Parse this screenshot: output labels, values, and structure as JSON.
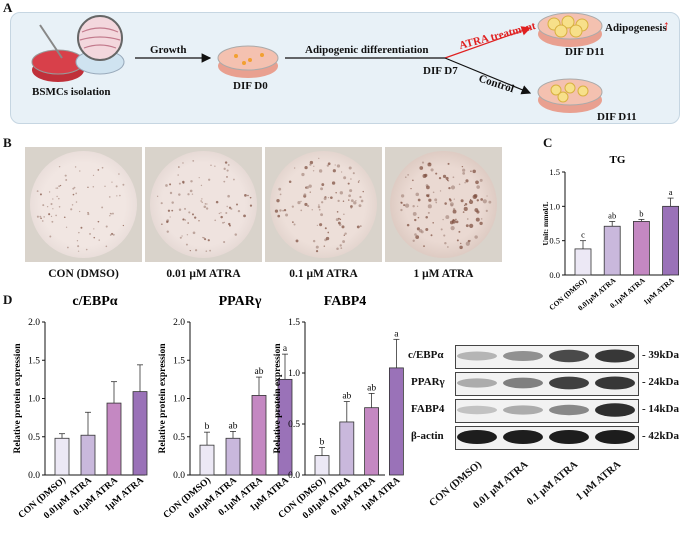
{
  "panels": {
    "a": "A",
    "b": "B",
    "c": "C",
    "d": "D"
  },
  "schema": {
    "isolation": "BSMCs isolation",
    "growth": "Growth",
    "dif_d0": "DIF D0",
    "adipogenic": "Adipogenic differentiation",
    "dif_d7": "DIF D7",
    "atra_treatment": "ATRA treatment",
    "control": "Control",
    "adipogenesis": "Adipogenesis",
    "up_arrow": "↑",
    "dif_d11_top": "DIF D11",
    "dif_d11_bottom": "DIF D11"
  },
  "micrographs": [
    "CON (DMSO)",
    "0.01 μM ATRA",
    "0.1 μM ATRA",
    "1 μM ATRA"
  ],
  "western": {
    "proteins": [
      "c/EBPα",
      "PPARγ",
      "FABP4",
      "β-actin"
    ],
    "sizes": [
      "- 39kDa",
      "- 24kDa",
      "- 14kDa",
      "- 42kDa"
    ],
    "lanes": [
      "CON (DMSO)",
      "0.01 μM ATRA",
      "0.1 μM ATRA",
      "1 μM ATRA"
    ]
  },
  "colors": {
    "bar1": "#ece8f5",
    "bar2": "#c9b8dc",
    "bar3": "#c488c2",
    "bar4": "#9a72b8",
    "panel_bg": "#e8f1f7",
    "red": "#e02020"
  },
  "chart_data": [
    {
      "id": "tg",
      "type": "bar",
      "title": "TG",
      "ylabel": "Unit: mmol/L",
      "categories": [
        "CON (DMSO)",
        "0.01μM ATRA",
        "0.1μM ATRA",
        "1μM ATRA"
      ],
      "values": [
        0.38,
        0.71,
        0.78,
        1.0
      ],
      "errors": [
        0.12,
        0.07,
        0.03,
        0.12
      ],
      "letters": [
        "c",
        "ab",
        "b",
        "a"
      ],
      "ylim": [
        0,
        1.5
      ],
      "yticks": [
        "0.0",
        "0.5",
        "1.0",
        "1.5"
      ]
    },
    {
      "id": "cebpa",
      "type": "bar",
      "title": "c/EBPα",
      "ylabel": "Relative protein expression",
      "categories": [
        "CON (DMSO)",
        "0.01μM ATRA",
        "0.1μM ATRA",
        "1μM ATRA"
      ],
      "values": [
        0.48,
        0.52,
        0.94,
        1.09
      ],
      "errors": [
        0.06,
        0.3,
        0.28,
        0.35
      ],
      "letters": [
        "",
        "",
        "",
        ""
      ],
      "ylim": [
        0,
        2.0
      ],
      "yticks": [
        "0.0",
        "0.5",
        "1.0",
        "1.5",
        "2.0"
      ]
    },
    {
      "id": "pparg",
      "type": "bar",
      "title": "PPARγ",
      "ylabel": "Relative protein expression",
      "categories": [
        "CON (DMSO)",
        "0.01μM ATRA",
        "0.1μM ATRA",
        "1μM ATRA"
      ],
      "values": [
        0.39,
        0.48,
        1.04,
        1.25
      ],
      "errors": [
        0.17,
        0.09,
        0.24,
        0.33
      ],
      "letters": [
        "b",
        "ab",
        "ab",
        "a"
      ],
      "ylim": [
        0,
        2.0
      ],
      "yticks": [
        "0.0",
        "0.5",
        "1.0",
        "1.5",
        "2.0"
      ]
    },
    {
      "id": "fabp4",
      "type": "bar",
      "title": "FABP4",
      "ylabel": "Relative protein expression",
      "categories": [
        "CON (DMSO)",
        "0.01μM ATRA",
        "0.1μM ATRA",
        "1μM ATRA"
      ],
      "values": [
        0.19,
        0.52,
        0.66,
        1.05
      ],
      "errors": [
        0.08,
        0.2,
        0.14,
        0.28
      ],
      "letters": [
        "b",
        "ab",
        "ab",
        "a"
      ],
      "ylim": [
        0,
        1.5
      ],
      "yticks": [
        "0.0",
        "0.5",
        "1.0",
        "1.5"
      ]
    }
  ]
}
